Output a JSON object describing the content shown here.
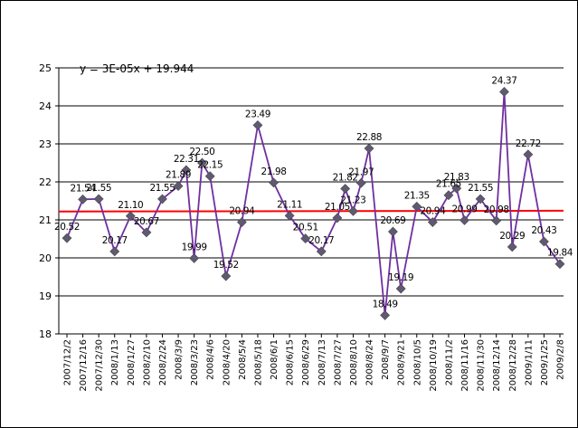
{
  "chart_data": {
    "type": "line",
    "title": "",
    "xlabel": "",
    "ylabel": "",
    "ylim": [
      18,
      25
    ],
    "yticks": [
      18,
      19,
      20,
      21,
      22,
      23,
      24,
      25
    ],
    "x_tick_labels": [
      "2007/12/2",
      "2007/12/16",
      "2007/12/30",
      "2008/1/13",
      "2008/1/27",
      "2008/2/10",
      "2008/2/24",
      "2008/3/9",
      "2008/3/23",
      "2008/4/6",
      "2008/4/20",
      "2008/5/4",
      "2008/5/18",
      "2008/6/1",
      "2008/6/15",
      "2008/6/29",
      "2008/7/13",
      "2008/7/27",
      "2008/8/10",
      "2008/8/24",
      "2008/9/7",
      "2008/9/21",
      "2008/10/5",
      "2008/10/19",
      "2008/11/2",
      "2008/11/16",
      "2008/11/30",
      "2008/12/14",
      "2008/12/28",
      "2009/1/11",
      "2009/1/25",
      "2009/2/8"
    ],
    "series": [
      {
        "color": "#7030A0",
        "marker_color": "#5F5A6E",
        "points": [
          {
            "x": "2007/12/2",
            "y": 20.52,
            "label": "20.52"
          },
          {
            "x": "2007/12/16",
            "y": 21.54,
            "label": "21.54"
          },
          {
            "x": "2007/12/30",
            "y": 21.55,
            "label": "21.55"
          },
          {
            "x": "2008/1/13",
            "y": 20.17,
            "label": "20.17"
          },
          {
            "x": "2008/1/27",
            "y": 21.1,
            "label": "21.10"
          },
          {
            "x": "2008/2/10",
            "y": 20.67,
            "label": "20.67"
          },
          {
            "x": "2008/2/24",
            "y": 21.55,
            "label": "21.55"
          },
          {
            "x": "2008/3/9",
            "y": 21.89,
            "label": "21.89"
          },
          {
            "x": "2008/3/16",
            "y": 22.31,
            "label": "22.31"
          },
          {
            "x": "2008/3/23",
            "y": 19.99,
            "label": "19.99"
          },
          {
            "x": "2008/3/30",
            "y": 22.5,
            "label": "22.50"
          },
          {
            "x": "2008/4/6",
            "y": 22.15,
            "label": "22.15"
          },
          {
            "x": "2008/4/20",
            "y": 19.52,
            "label": "19.52"
          },
          {
            "x": "2008/5/4",
            "y": 20.94,
            "label": "20.94"
          },
          {
            "x": "2008/5/18",
            "y": 23.49,
            "label": "23.49"
          },
          {
            "x": "2008/6/1",
            "y": 21.98,
            "label": "21.98"
          },
          {
            "x": "2008/6/15",
            "y": 21.11,
            "label": "21.11"
          },
          {
            "x": "2008/6/29",
            "y": 20.51,
            "label": "20.51"
          },
          {
            "x": "2008/7/13",
            "y": 20.17,
            "label": "20.17"
          },
          {
            "x": "2008/7/27",
            "y": 21.05,
            "label": "21.05"
          },
          {
            "x": "2008/8/3",
            "y": 21.82,
            "label": "21.82"
          },
          {
            "x": "2008/8/10",
            "y": 21.23,
            "label": "21.23"
          },
          {
            "x": "2008/8/17",
            "y": 21.97,
            "label": "21.97"
          },
          {
            "x": "2008/8/24",
            "y": 22.88,
            "label": "22.88"
          },
          {
            "x": "2008/9/7",
            "y": 18.49,
            "label": "18.49"
          },
          {
            "x": "2008/9/14",
            "y": 20.69,
            "label": "20.69"
          },
          {
            "x": "2008/9/21",
            "y": 19.19,
            "label": "19.19"
          },
          {
            "x": "2008/10/5",
            "y": 21.35,
            "label": "21.35"
          },
          {
            "x": "2008/10/19",
            "y": 20.94,
            "label": "20.94"
          },
          {
            "x": "2008/11/2",
            "y": 21.65,
            "label": "21.65"
          },
          {
            "x": "2008/11/9",
            "y": 21.83,
            "label": "21.83"
          },
          {
            "x": "2008/11/16",
            "y": 20.99,
            "label": "20.99"
          },
          {
            "x": "2008/11/30",
            "y": 21.55,
            "label": "21.55"
          },
          {
            "x": "2008/12/14",
            "y": 20.98,
            "label": "20.98"
          },
          {
            "x": "2008/12/21",
            "y": 24.37,
            "label": "24.37"
          },
          {
            "x": "2008/12/28",
            "y": 20.29,
            "label": "20.29"
          },
          {
            "x": "2009/1/11",
            "y": 22.72,
            "label": "22.72"
          },
          {
            "x": "2009/1/25",
            "y": 20.43,
            "label": "20.43"
          },
          {
            "x": "2009/2/8",
            "y": 19.84,
            "label": "19.84"
          }
        ]
      }
    ],
    "trendline": {
      "equation": "y = 3E-05x + 19.944",
      "color": "#FF0000",
      "y_start": 21.22,
      "y_end": 21.24
    },
    "grid": {
      "horizontal": true,
      "vertical": false
    },
    "legend": "none"
  }
}
